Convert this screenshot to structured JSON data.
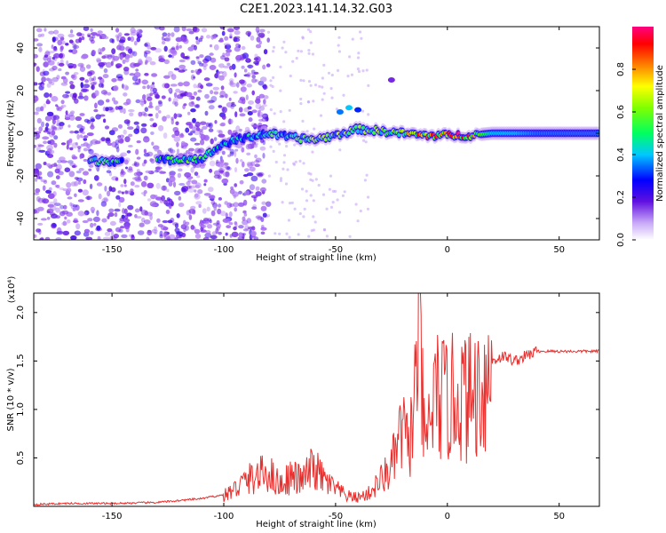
{
  "figure_title": "C2E1.2023.141.14.32.G03",
  "chart_data": [
    {
      "type": "heatmap",
      "xlabel": "Height of straight line (km)",
      "ylabel": "Frequency (Hz)",
      "xlim": [
        -185,
        68
      ],
      "ylim": [
        -50,
        50
      ],
      "xticks": [
        -150,
        -100,
        -50,
        0,
        50
      ],
      "yticks": [
        -40,
        -20,
        0,
        20,
        40
      ],
      "colorbar": {
        "label": "Normalized spectral amplitude",
        "range": [
          0.0,
          1.0
        ],
        "ticks": [
          0.0,
          0.2,
          0.4,
          0.6,
          0.8
        ],
        "colors": [
          "#ffffff",
          "#a070f0",
          "#0000ff",
          "#00c8ff",
          "#00ff00",
          "#ffff00",
          "#ff8000",
          "#ff0000",
          "#ff0080"
        ]
      },
      "ridge": {
        "description": "dominant frequency ridge",
        "x": [
          -160,
          -150,
          -130,
          -120,
          -110,
          -100,
          -90,
          -80,
          -70,
          -60,
          -50,
          -40,
          -30,
          -20,
          -10,
          0,
          10,
          20,
          30,
          40,
          50,
          60,
          68
        ],
        "y": [
          -13,
          -13,
          -13,
          -12,
          -12,
          -5,
          -2,
          0,
          -2,
          -3,
          -1,
          2,
          1,
          0,
          -1,
          -1,
          -1,
          0,
          0,
          0,
          0,
          0,
          0
        ],
        "amplitude": [
          0.5,
          0.45,
          0.4,
          0.45,
          0.5,
          0.35,
          0.4,
          0.45,
          0.5,
          0.55,
          0.55,
          0.5,
          0.6,
          0.6,
          0.75,
          0.8,
          0.75,
          0.4,
          0.4,
          0.35,
          0.35,
          0.35,
          0.35
        ]
      }
    },
    {
      "type": "line",
      "xlabel": "Height of straight line (km)",
      "ylabel": "SNR (10 * v/v)",
      "y_multiplier": "(x10⁴)",
      "xlim": [
        -185,
        68
      ],
      "ylim": [
        0,
        2.2
      ],
      "xticks": [
        -150,
        -100,
        -50,
        0,
        50
      ],
      "yticks": [
        0.5,
        1.0,
        1.5,
        2.0
      ],
      "color": "#e8302e",
      "series": [
        {
          "x": [
            -185,
            -170,
            -150,
            -130,
            -120,
            -110,
            -100,
            -95,
            -90,
            -85,
            -80,
            -75,
            -70,
            -65,
            -60,
            -55,
            -50,
            -45,
            -40,
            -35,
            -30,
            -25,
            -20,
            -18,
            -15,
            -13,
            -10,
            -8,
            -5,
            0,
            5,
            10,
            15,
            20,
            25,
            30,
            35,
            40,
            45,
            50,
            55,
            60,
            68
          ],
          "y": [
            0.02,
            0.03,
            0.03,
            0.04,
            0.06,
            0.08,
            0.12,
            0.2,
            0.3,
            0.35,
            0.4,
            0.25,
            0.35,
            0.3,
            0.45,
            0.3,
            0.2,
            0.12,
            0.1,
            0.15,
            0.3,
            0.45,
            0.9,
            0.7,
            1.0,
            2.2,
            0.6,
            1.0,
            1.3,
            1.2,
            1.3,
            1.25,
            1.4,
            1.5,
            1.55,
            1.5,
            1.55,
            1.6,
            1.6,
            1.6,
            1.6,
            1.6,
            1.6
          ]
        }
      ]
    }
  ]
}
